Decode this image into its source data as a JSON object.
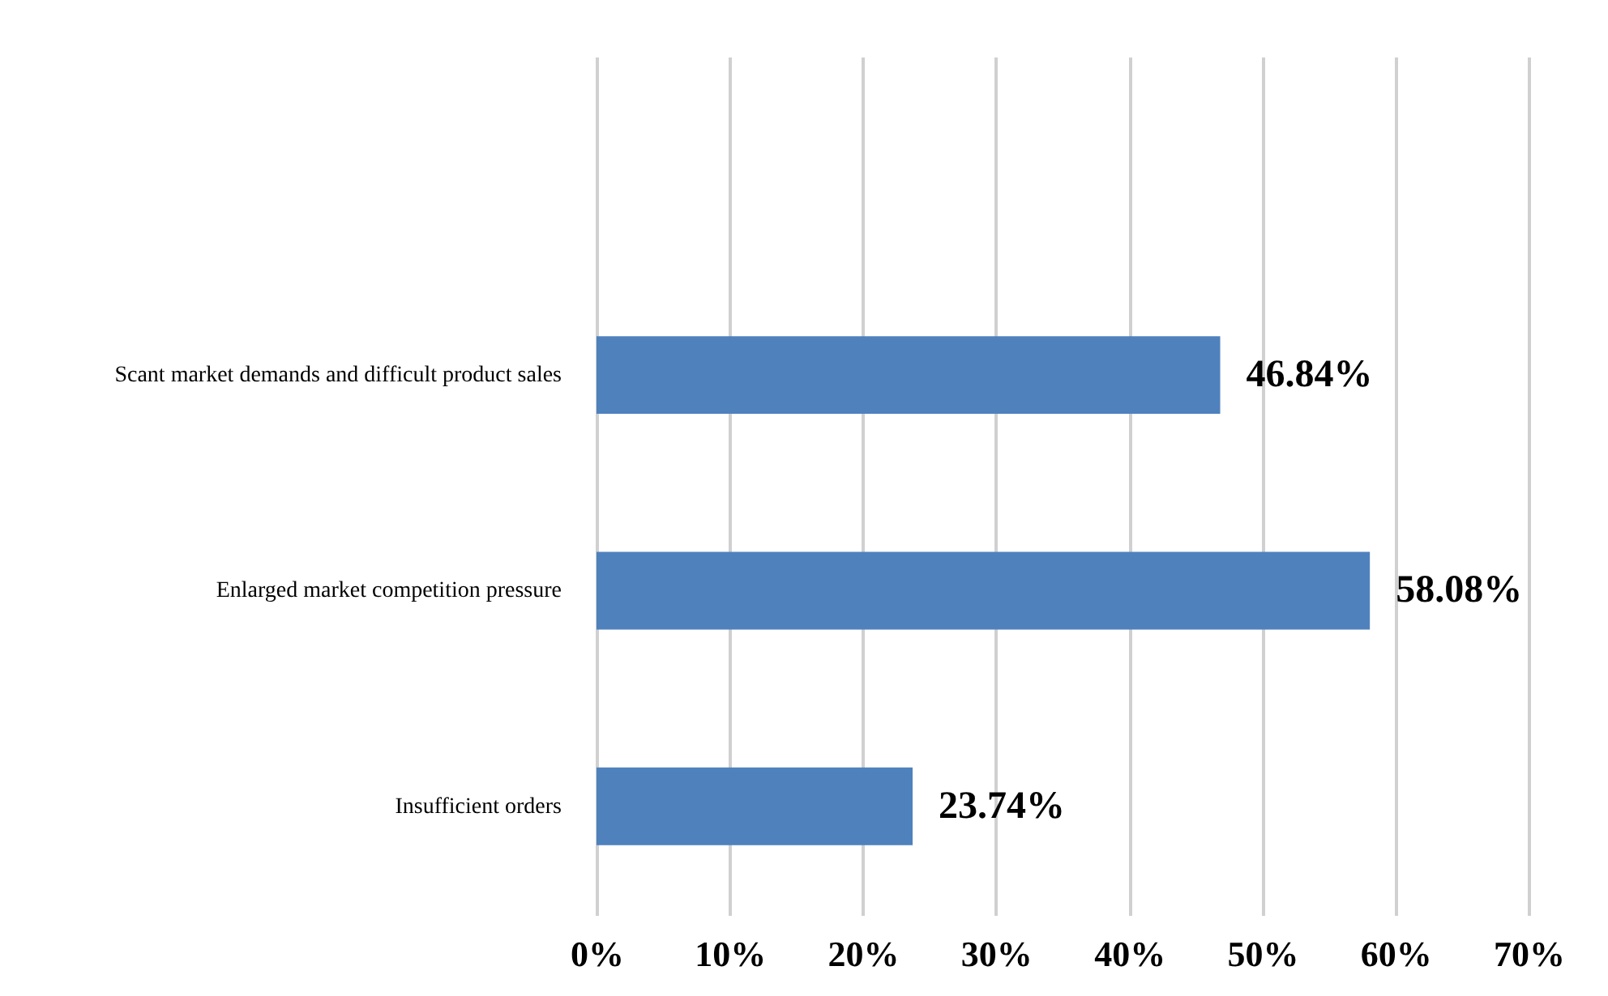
{
  "chart_data": {
    "type": "bar",
    "orientation": "horizontal",
    "categories": [
      "Scant market demands and difficult product sales",
      "Enlarged market competition pressure",
      "Insufficient orders"
    ],
    "values": [
      46.84,
      58.08,
      23.74
    ],
    "value_labels": [
      "46.84%",
      "58.08%",
      "23.74%"
    ],
    "color": "#4f81bd",
    "xlim": [
      0,
      70
    ],
    "xticks": [
      {
        "value": 0,
        "label": "0%"
      },
      {
        "value": 10,
        "label": "10%"
      },
      {
        "value": 20,
        "label": "20%"
      },
      {
        "value": 30,
        "label": "30%"
      },
      {
        "value": 40,
        "label": "40%"
      },
      {
        "value": 50,
        "label": "50%"
      },
      {
        "value": 60,
        "label": "60%"
      },
      {
        "value": 70,
        "label": "70%"
      }
    ],
    "grid": "x"
  }
}
